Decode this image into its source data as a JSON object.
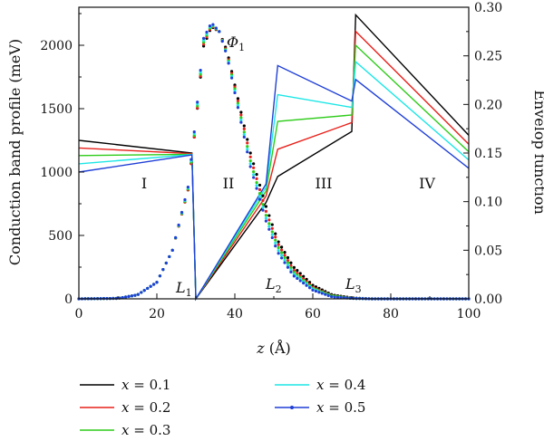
{
  "chart_data": {
    "type": "line",
    "xlabel": "z (Å)",
    "ylabel_left": "Conduction band profile (meV)",
    "ylabel_right": "Envelop function",
    "xlim": [
      0,
      100
    ],
    "ylim_left": [
      0,
      2300
    ],
    "ylim_right": [
      0,
      0.3
    ],
    "x_ticks": [
      "0",
      "20",
      "40",
      "60",
      "80",
      "100"
    ],
    "y_left_ticks": [
      "0",
      "500",
      "1000",
      "1500",
      "2000"
    ],
    "y_right_ticks": [
      "0.00",
      "0.05",
      "0.10",
      "0.15",
      "0.20",
      "0.25",
      "0.30"
    ],
    "legend_position": "bottom",
    "region_labels": [
      "I",
      "II",
      "III",
      "IV"
    ],
    "annotations": {
      "phi": "Φ",
      "phi_sub": "1",
      "L1": "L",
      "L1_sub": "1",
      "L2": "L",
      "L2_sub": "2",
      "L3": "L",
      "L3_sub": "3"
    },
    "series": [
      {
        "name": "x = 0.1",
        "color": "#000000",
        "band_profile_meV": [
          [
            0,
            1250
          ],
          [
            29,
            1150
          ],
          [
            30,
            0
          ],
          [
            48,
            760
          ],
          [
            51,
            965
          ],
          [
            70,
            1320
          ],
          [
            71,
            2240
          ],
          [
            100,
            1290
          ]
        ],
        "envelope": [
          [
            0,
            0.0
          ],
          [
            10,
            0.0005
          ],
          [
            15,
            0.004
          ],
          [
            20,
            0.017
          ],
          [
            24,
            0.05
          ],
          [
            28,
            0.112
          ],
          [
            30,
            0.18
          ],
          [
            32,
            0.26
          ],
          [
            34,
            0.28
          ],
          [
            36,
            0.275
          ],
          [
            38,
            0.255
          ],
          [
            40,
            0.22
          ],
          [
            44,
            0.15
          ],
          [
            48,
            0.095
          ],
          [
            51,
            0.06
          ],
          [
            55,
            0.033
          ],
          [
            60,
            0.014
          ],
          [
            65,
            0.004
          ],
          [
            70,
            0.001
          ],
          [
            75,
            0.0
          ],
          [
            100,
            0.0
          ]
        ]
      },
      {
        "name": "x = 0.2",
        "color": "#e8201a",
        "band_profile_meV": [
          [
            0,
            1190
          ],
          [
            29,
            1145
          ],
          [
            30,
            0
          ],
          [
            48,
            810
          ],
          [
            51,
            1180
          ],
          [
            70,
            1390
          ],
          [
            71,
            2110
          ],
          [
            100,
            1220
          ]
        ],
        "envelope": [
          [
            0,
            0.0
          ],
          [
            10,
            0.0005
          ],
          [
            15,
            0.004
          ],
          [
            20,
            0.017
          ],
          [
            24,
            0.05
          ],
          [
            28,
            0.112
          ],
          [
            30,
            0.18
          ],
          [
            32,
            0.262
          ],
          [
            34,
            0.281
          ],
          [
            36,
            0.275
          ],
          [
            38,
            0.253
          ],
          [
            40,
            0.218
          ],
          [
            44,
            0.146
          ],
          [
            48,
            0.09
          ],
          [
            51,
            0.057
          ],
          [
            55,
            0.03
          ],
          [
            60,
            0.012
          ],
          [
            65,
            0.003
          ],
          [
            70,
            0.0005
          ],
          [
            75,
            0.0
          ],
          [
            100,
            0.0
          ]
        ]
      },
      {
        "name": "x = 0.3",
        "color": "#2ecc1a",
        "band_profile_meV": [
          [
            0,
            1130
          ],
          [
            29,
            1140
          ],
          [
            30,
            0
          ],
          [
            48,
            850
          ],
          [
            51,
            1400
          ],
          [
            70,
            1450
          ],
          [
            71,
            2000
          ],
          [
            100,
            1160
          ]
        ],
        "envelope": [
          [
            0,
            0.0
          ],
          [
            10,
            0.0005
          ],
          [
            15,
            0.004
          ],
          [
            20,
            0.017
          ],
          [
            24,
            0.05
          ],
          [
            28,
            0.113
          ],
          [
            30,
            0.182
          ],
          [
            32,
            0.264
          ],
          [
            34,
            0.282
          ],
          [
            36,
            0.275
          ],
          [
            38,
            0.252
          ],
          [
            40,
            0.216
          ],
          [
            44,
            0.142
          ],
          [
            48,
            0.086
          ],
          [
            51,
            0.054
          ],
          [
            55,
            0.028
          ],
          [
            60,
            0.011
          ],
          [
            65,
            0.003
          ],
          [
            70,
            0.0005
          ],
          [
            75,
            0.0
          ],
          [
            100,
            0.0
          ]
        ]
      },
      {
        "name": "x = 0.4",
        "color": "#1ee6e6",
        "band_profile_meV": [
          [
            0,
            1065
          ],
          [
            29,
            1138
          ],
          [
            30,
            0
          ],
          [
            48,
            880
          ],
          [
            51,
            1610
          ],
          [
            70,
            1510
          ],
          [
            71,
            1870
          ],
          [
            100,
            1095
          ]
        ],
        "envelope": [
          [
            0,
            0.0
          ],
          [
            10,
            0.0005
          ],
          [
            15,
            0.004
          ],
          [
            20,
            0.017
          ],
          [
            24,
            0.05
          ],
          [
            28,
            0.114
          ],
          [
            30,
            0.184
          ],
          [
            32,
            0.266
          ],
          [
            34,
            0.283
          ],
          [
            36,
            0.275
          ],
          [
            38,
            0.251
          ],
          [
            40,
            0.214
          ],
          [
            44,
            0.139
          ],
          [
            48,
            0.083
          ],
          [
            51,
            0.051
          ],
          [
            55,
            0.026
          ],
          [
            60,
            0.01
          ],
          [
            65,
            0.002
          ],
          [
            70,
            0.0005
          ],
          [
            75,
            0.0
          ],
          [
            100,
            0.0
          ]
        ]
      },
      {
        "name": "x = 0.5",
        "color": "#1f3fd6",
        "band_profile_meV": [
          [
            0,
            1000
          ],
          [
            29,
            1135
          ],
          [
            30,
            0
          ],
          [
            48,
            905
          ],
          [
            51,
            1840
          ],
          [
            70,
            1560
          ],
          [
            71,
            1730
          ],
          [
            100,
            1030
          ]
        ],
        "envelope": [
          [
            0,
            0.0
          ],
          [
            10,
            0.0005
          ],
          [
            15,
            0.004
          ],
          [
            20,
            0.017
          ],
          [
            24,
            0.05
          ],
          [
            28,
            0.115
          ],
          [
            30,
            0.186
          ],
          [
            32,
            0.268
          ],
          [
            34,
            0.284
          ],
          [
            36,
            0.275
          ],
          [
            38,
            0.25
          ],
          [
            40,
            0.212
          ],
          [
            44,
            0.136
          ],
          [
            48,
            0.08
          ],
          [
            51,
            0.048
          ],
          [
            55,
            0.024
          ],
          [
            60,
            0.009
          ],
          [
            65,
            0.002
          ],
          [
            70,
            0.0005
          ],
          [
            75,
            0.0
          ],
          [
            100,
            0.0
          ]
        ]
      }
    ]
  }
}
